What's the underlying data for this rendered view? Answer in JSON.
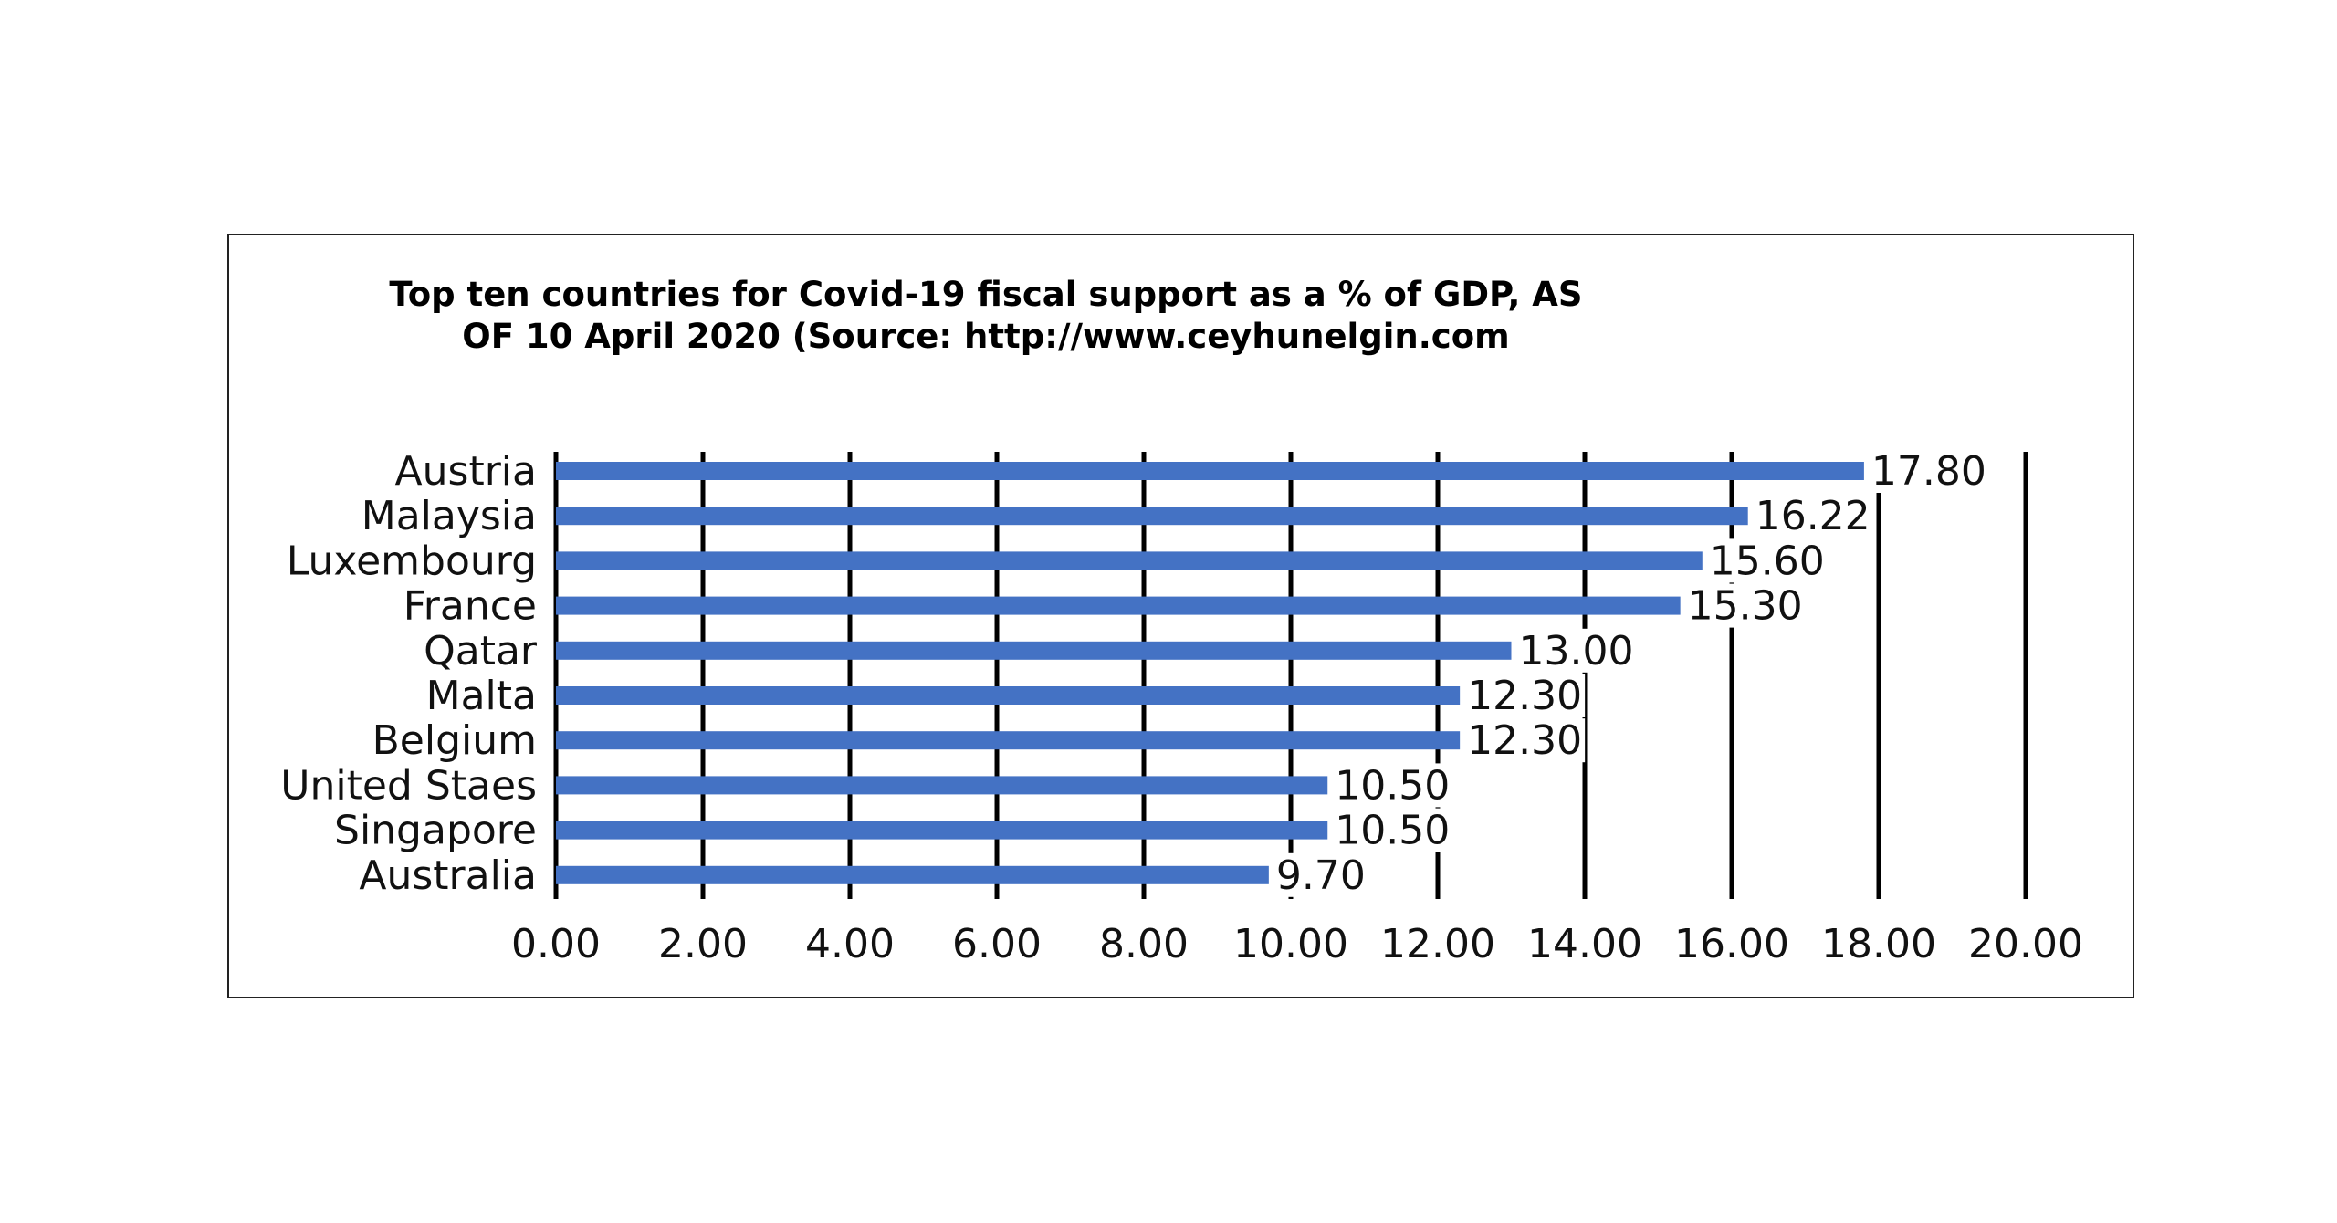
{
  "chart_data": {
    "type": "bar",
    "orientation": "horizontal",
    "title": "Top ten countries for Covid-19 fiscal support as a % of GDP, AS OF 10 April 2020 (Source: http://www.ceyhunelgin.com",
    "categories": [
      "Austria",
      "Malaysia",
      "Luxembourg",
      "France",
      "Qatar",
      "Malta",
      "Belgium",
      "United Staes",
      "Singapore",
      "Australia"
    ],
    "values": [
      17.8,
      16.22,
      15.6,
      15.3,
      13.0,
      12.3,
      12.3,
      10.5,
      10.5,
      9.7
    ],
    "data_labels": [
      "17.80",
      "16.22",
      "15.60",
      "15.30",
      "13.00",
      "12.30",
      "12.30",
      "10.50",
      "10.50",
      "9.70"
    ],
    "x_ticks": [
      "0.00",
      "2.00",
      "4.00",
      "6.00",
      "8.00",
      "10.00",
      "12.00",
      "14.00",
      "16.00",
      "18.00",
      "20.00"
    ],
    "xlim": [
      0,
      20
    ],
    "xlabel": "",
    "ylabel": "",
    "grid": true,
    "legend": "none",
    "colors": {
      "bar": "#4472c4",
      "grid": "#000000",
      "text": "#111111",
      "frame": "#222222"
    }
  }
}
